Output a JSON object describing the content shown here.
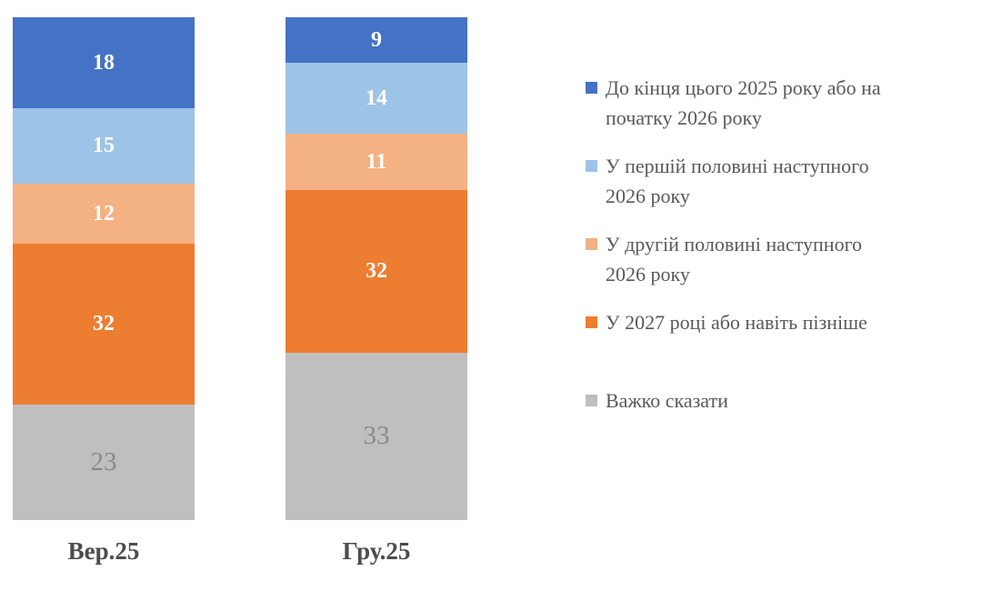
{
  "chart_data": {
    "type": "bar",
    "variant": "stacked-100-percent-column",
    "orientation": "vertical",
    "grid": false,
    "axes_visible": false,
    "legend_position": "right",
    "categories": [
      "Вер.25",
      "Гру.25"
    ],
    "series": [
      {
        "name": "До кінця цього 2025 року або на початку 2026 року",
        "legend_display": "До кінця цього 2025 року або на\nпочатку 2026 року",
        "color": "#4472C4",
        "label_color": "#FFFFFF",
        "label_bold": true,
        "values": [
          18,
          9
        ]
      },
      {
        "name": "У першій половині наступного 2026 року",
        "legend_display": "У першій половині наступного\n2026 року",
        "color": "#9DC3E6",
        "label_color": "#FFFFFF",
        "label_bold": true,
        "values": [
          15,
          14
        ]
      },
      {
        "name": "У другій половині наступного 2026 року",
        "legend_display": "У другій половині наступного\n2026 року",
        "color": "#F4B183",
        "label_color": "#FFFFFF",
        "label_bold": true,
        "values": [
          12,
          11
        ]
      },
      {
        "name": "У 2027 році або навіть пізніше",
        "legend_display": "У 2027 році або навіть пізніше",
        "color": "#ED7D31",
        "label_color": "#FFFFFF",
        "label_bold": true,
        "values": [
          32,
          32
        ]
      },
      {
        "name": "Важко сказати",
        "legend_display": "Важко сказати",
        "color": "#BFBFBF",
        "label_color": "#898989",
        "label_bold": false,
        "values": [
          23,
          33
        ]
      }
    ],
    "colors": {
      "category_label": "#4D4D4D",
      "legend_text": "#595959",
      "background": "#FFFFFF"
    }
  }
}
